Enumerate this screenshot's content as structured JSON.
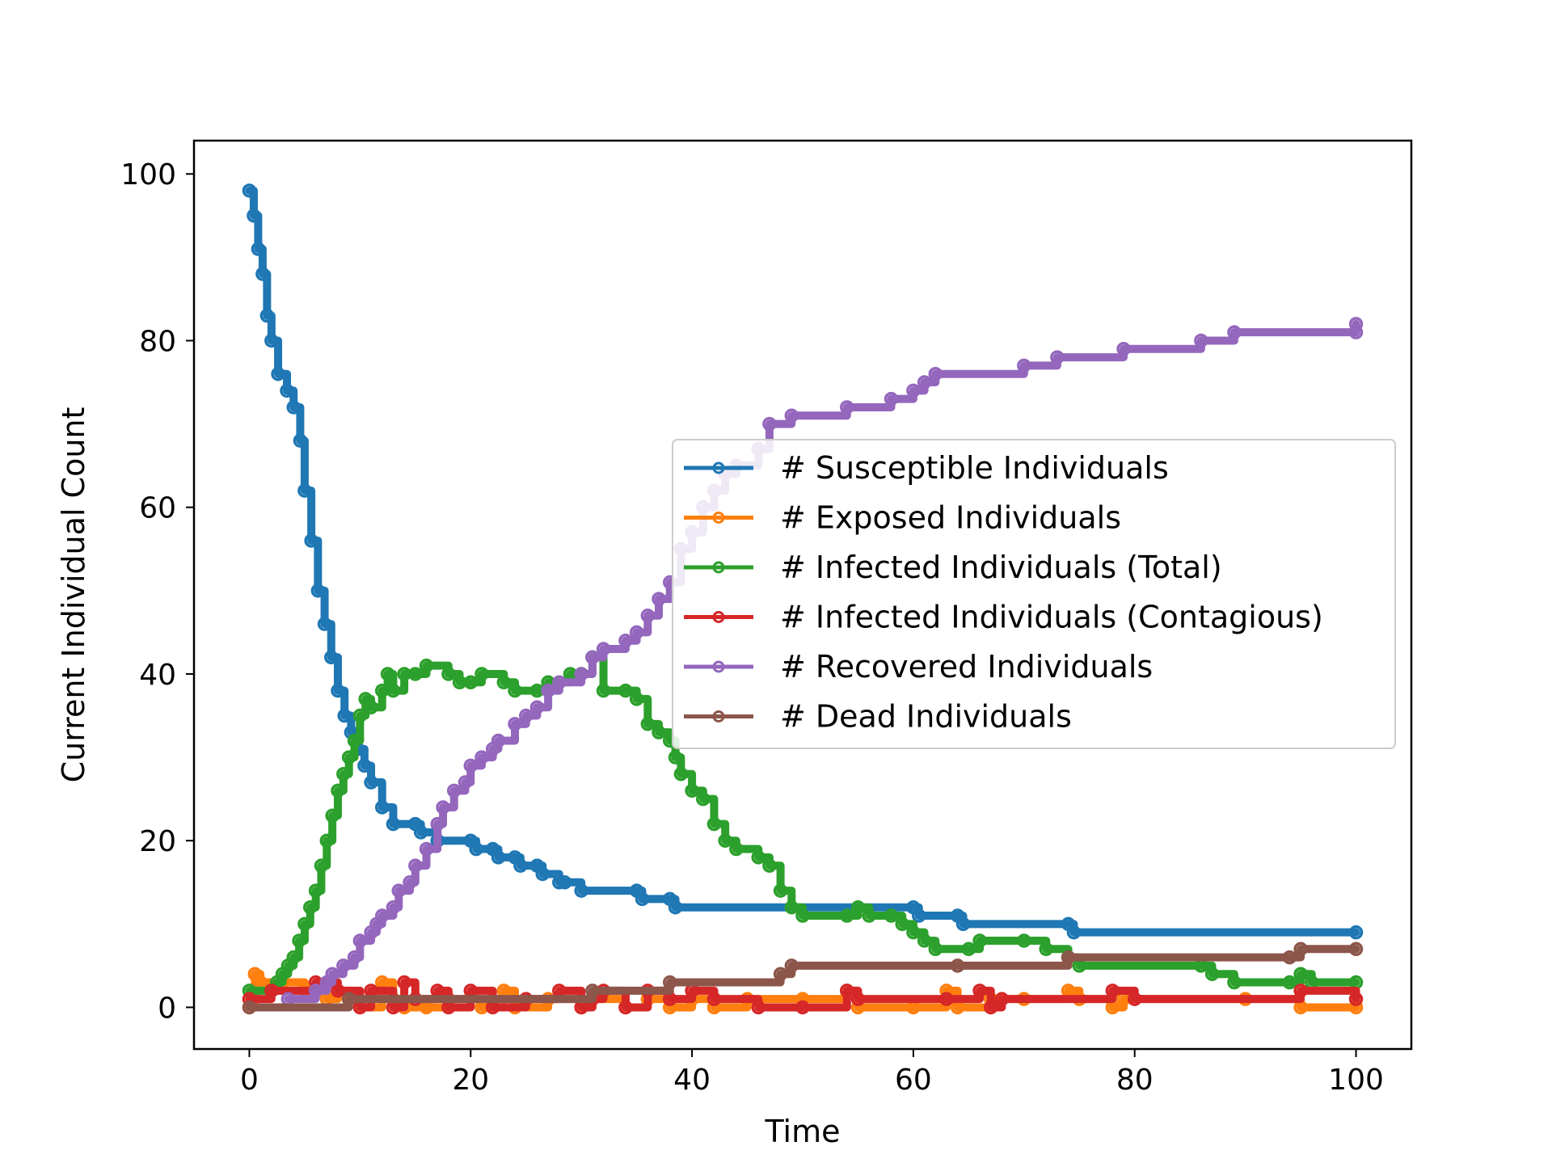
{
  "chart_data": {
    "type": "line",
    "title": "",
    "xlabel": "Time",
    "ylabel": "Current Individual Count",
    "xlim": [
      -5,
      105
    ],
    "ylim": [
      -5,
      104
    ],
    "x_ticks": [
      0,
      20,
      40,
      60,
      80,
      100
    ],
    "y_ticks": [
      0,
      20,
      40,
      60,
      80,
      100
    ],
    "grid": false,
    "legend_position": "center-right",
    "series": [
      {
        "name": "# Susceptible Individuals",
        "color": "#1f77b4",
        "points": [
          [
            0,
            98
          ],
          [
            0.4,
            95
          ],
          [
            0.8,
            91
          ],
          [
            1.2,
            88
          ],
          [
            1.6,
            83
          ],
          [
            2,
            80
          ],
          [
            2.6,
            76
          ],
          [
            3.4,
            74
          ],
          [
            4,
            72
          ],
          [
            4.6,
            68
          ],
          [
            5,
            62
          ],
          [
            5.6,
            56
          ],
          [
            6.2,
            50
          ],
          [
            6.8,
            46
          ],
          [
            7.4,
            42
          ],
          [
            8,
            38
          ],
          [
            8.6,
            35
          ],
          [
            9.2,
            33
          ],
          [
            9.8,
            31
          ],
          [
            10.4,
            29
          ],
          [
            11,
            27
          ],
          [
            12,
            24
          ],
          [
            13,
            22
          ],
          [
            15,
            22
          ],
          [
            15.5,
            21
          ],
          [
            17,
            20
          ],
          [
            20,
            20
          ],
          [
            20.5,
            19
          ],
          [
            22,
            19
          ],
          [
            22.5,
            18
          ],
          [
            24,
            18
          ],
          [
            24.5,
            17
          ],
          [
            26,
            17
          ],
          [
            26.5,
            16
          ],
          [
            28,
            15
          ],
          [
            28.5,
            15
          ],
          [
            30,
            14
          ],
          [
            35,
            14
          ],
          [
            35.5,
            13
          ],
          [
            38,
            13
          ],
          [
            38.5,
            12
          ],
          [
            60,
            12
          ],
          [
            60.5,
            11
          ],
          [
            64,
            11
          ],
          [
            64.5,
            10
          ],
          [
            74,
            10
          ],
          [
            74.5,
            9
          ],
          [
            100,
            9
          ]
        ]
      },
      {
        "name": "# Exposed Individuals",
        "color": "#ff7f0e",
        "points": [
          [
            0,
            0
          ],
          [
            0.5,
            4
          ],
          [
            1,
            3
          ],
          [
            2,
            2
          ],
          [
            3,
            3
          ],
          [
            5,
            2
          ],
          [
            7,
            1
          ],
          [
            8,
            2
          ],
          [
            9,
            1
          ],
          [
            10,
            0
          ],
          [
            12,
            3
          ],
          [
            13,
            1
          ],
          [
            14,
            0
          ],
          [
            16,
            0
          ],
          [
            18,
            1
          ],
          [
            21,
            0
          ],
          [
            23,
            2
          ],
          [
            24,
            0
          ],
          [
            27,
            1
          ],
          [
            30,
            0
          ],
          [
            31,
            1
          ],
          [
            34,
            0
          ],
          [
            36,
            1
          ],
          [
            38,
            0
          ],
          [
            40,
            1
          ],
          [
            42,
            0
          ],
          [
            45,
            1
          ],
          [
            50,
            1
          ],
          [
            54,
            2
          ],
          [
            55,
            0
          ],
          [
            60,
            0
          ],
          [
            63,
            2
          ],
          [
            64,
            0
          ],
          [
            67,
            1
          ],
          [
            70,
            1
          ],
          [
            74,
            2
          ],
          [
            75,
            1
          ],
          [
            78,
            0
          ],
          [
            79,
            1
          ],
          [
            90,
            1
          ],
          [
            95,
            0
          ],
          [
            100,
            0
          ]
        ]
      },
      {
        "name": "# Infected Individuals (Total)",
        "color": "#2ca02c",
        "points": [
          [
            0,
            2
          ],
          [
            2,
            2
          ],
          [
            2.5,
            3
          ],
          [
            3,
            4
          ],
          [
            3.5,
            5
          ],
          [
            4,
            6
          ],
          [
            4.5,
            8
          ],
          [
            5,
            10
          ],
          [
            5.5,
            12
          ],
          [
            6,
            14
          ],
          [
            6.5,
            17
          ],
          [
            7,
            20
          ],
          [
            7.5,
            23
          ],
          [
            8,
            26
          ],
          [
            8.5,
            28
          ],
          [
            9,
            30
          ],
          [
            9.5,
            32
          ],
          [
            10,
            35
          ],
          [
            10.5,
            37
          ],
          [
            11,
            36
          ],
          [
            12,
            38
          ],
          [
            12.5,
            40
          ],
          [
            13,
            38
          ],
          [
            14,
            40
          ],
          [
            15,
            40
          ],
          [
            16,
            41
          ],
          [
            18,
            40
          ],
          [
            19,
            39
          ],
          [
            20,
            39
          ],
          [
            21,
            40
          ],
          [
            23,
            39
          ],
          [
            24,
            38
          ],
          [
            26,
            38
          ],
          [
            27,
            39
          ],
          [
            29,
            40
          ],
          [
            30,
            40
          ],
          [
            31,
            42
          ],
          [
            32,
            38
          ],
          [
            34,
            38
          ],
          [
            35,
            37
          ],
          [
            36,
            34
          ],
          [
            37,
            33
          ],
          [
            38,
            32
          ],
          [
            38.5,
            30
          ],
          [
            39,
            28
          ],
          [
            40,
            26
          ],
          [
            41,
            25
          ],
          [
            42,
            22
          ],
          [
            43,
            20
          ],
          [
            44,
            19
          ],
          [
            46,
            18
          ],
          [
            47,
            17
          ],
          [
            48,
            14
          ],
          [
            49,
            12
          ],
          [
            50,
            11
          ],
          [
            54,
            11
          ],
          [
            55,
            12
          ],
          [
            56,
            11
          ],
          [
            58,
            11
          ],
          [
            59,
            10
          ],
          [
            60,
            9
          ],
          [
            61,
            8
          ],
          [
            62,
            7
          ],
          [
            65,
            7
          ],
          [
            66,
            8
          ],
          [
            70,
            8
          ],
          [
            72,
            7
          ],
          [
            74,
            6
          ],
          [
            75,
            5
          ],
          [
            86,
            5
          ],
          [
            87,
            4
          ],
          [
            89,
            3
          ],
          [
            94,
            3
          ],
          [
            95,
            4
          ],
          [
            96,
            3
          ],
          [
            100,
            3
          ]
        ]
      },
      {
        "name": "# Infected Individuals (Contagious)",
        "color": "#d62728",
        "points": [
          [
            0,
            1
          ],
          [
            2,
            2
          ],
          [
            6,
            3
          ],
          [
            8,
            2
          ],
          [
            10,
            0
          ],
          [
            11,
            2
          ],
          [
            13,
            0
          ],
          [
            14,
            3
          ],
          [
            15,
            1
          ],
          [
            17,
            2
          ],
          [
            18,
            0
          ],
          [
            20,
            2
          ],
          [
            22,
            0
          ],
          [
            25,
            1
          ],
          [
            28,
            2
          ],
          [
            30,
            0
          ],
          [
            31,
            1
          ],
          [
            32,
            2
          ],
          [
            34,
            0
          ],
          [
            36,
            2
          ],
          [
            38,
            1
          ],
          [
            40,
            2
          ],
          [
            42,
            1
          ],
          [
            46,
            0
          ],
          [
            50,
            0
          ],
          [
            54,
            2
          ],
          [
            55,
            1
          ],
          [
            63,
            1
          ],
          [
            66,
            2
          ],
          [
            67,
            0
          ],
          [
            68,
            1
          ],
          [
            78,
            2
          ],
          [
            80,
            1
          ],
          [
            95,
            2
          ],
          [
            100,
            1
          ]
        ]
      },
      {
        "name": "# Recovered Individuals",
        "color": "#9467bd",
        "points": [
          [
            3.5,
            1
          ],
          [
            6,
            2
          ],
          [
            7,
            3
          ],
          [
            7.5,
            4
          ],
          [
            8.5,
            5
          ],
          [
            9.5,
            6
          ],
          [
            10,
            8
          ],
          [
            11,
            9
          ],
          [
            11.5,
            10
          ],
          [
            12,
            11
          ],
          [
            13,
            12
          ],
          [
            13.5,
            14
          ],
          [
            14.5,
            15
          ],
          [
            15,
            17
          ],
          [
            16,
            19
          ],
          [
            17,
            22
          ],
          [
            17.5,
            24
          ],
          [
            18.5,
            26
          ],
          [
            19.5,
            27
          ],
          [
            20,
            29
          ],
          [
            21,
            30
          ],
          [
            22,
            31
          ],
          [
            22.5,
            32
          ],
          [
            24,
            34
          ],
          [
            25,
            35
          ],
          [
            26,
            36
          ],
          [
            27,
            38
          ],
          [
            28,
            39
          ],
          [
            30,
            40
          ],
          [
            31,
            42
          ],
          [
            32,
            43
          ],
          [
            34,
            44
          ],
          [
            35,
            45
          ],
          [
            36,
            47
          ],
          [
            37,
            49
          ],
          [
            38,
            51
          ],
          [
            39,
            55
          ],
          [
            40,
            57
          ],
          [
            41,
            60
          ],
          [
            42,
            62
          ],
          [
            43,
            64
          ],
          [
            44,
            65
          ],
          [
            46,
            67
          ],
          [
            47,
            70
          ],
          [
            49,
            71
          ],
          [
            54,
            72
          ],
          [
            58,
            73
          ],
          [
            60,
            74
          ],
          [
            61,
            75
          ],
          [
            62,
            76
          ],
          [
            70,
            77
          ],
          [
            73,
            78
          ],
          [
            79,
            79
          ],
          [
            86,
            80
          ],
          [
            89,
            81
          ],
          [
            100,
            81
          ],
          [
            100,
            82
          ]
        ]
      },
      {
        "name": "# Dead Individuals",
        "color": "#8c564b",
        "points": [
          [
            0,
            0
          ],
          [
            9,
            1
          ],
          [
            31,
            2
          ],
          [
            38,
            3
          ],
          [
            48,
            4
          ],
          [
            49,
            5
          ],
          [
            64,
            5
          ],
          [
            74,
            6
          ],
          [
            94,
            6
          ],
          [
            95,
            7
          ],
          [
            100,
            7
          ]
        ]
      }
    ]
  }
}
